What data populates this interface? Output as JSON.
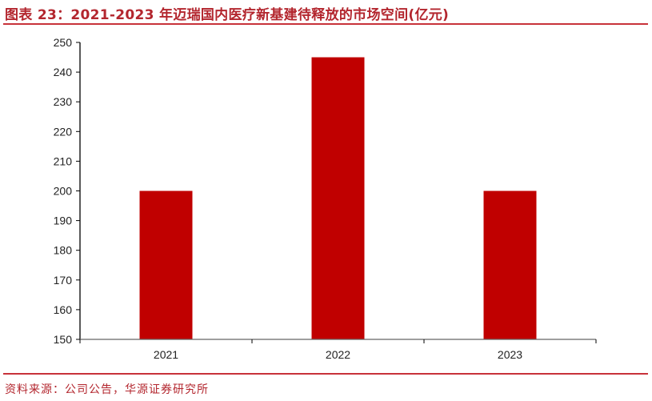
{
  "title": "图表 23：2021-2023 年迈瑞国内医疗新基建待释放的市场空间(亿元)",
  "source": "资料来源：公司公告，华源证券研究所",
  "colors": {
    "bar": "#c00000",
    "title": "#b3262e"
  },
  "chart_data": {
    "type": "bar",
    "categories": [
      "2021",
      "2022",
      "2023"
    ],
    "values": [
      200,
      245,
      200
    ],
    "ylim": [
      150,
      250
    ],
    "yticks": [
      150,
      160,
      170,
      180,
      190,
      200,
      210,
      220,
      230,
      240,
      250
    ],
    "grid": false,
    "xlabel": "",
    "ylabel": ""
  }
}
